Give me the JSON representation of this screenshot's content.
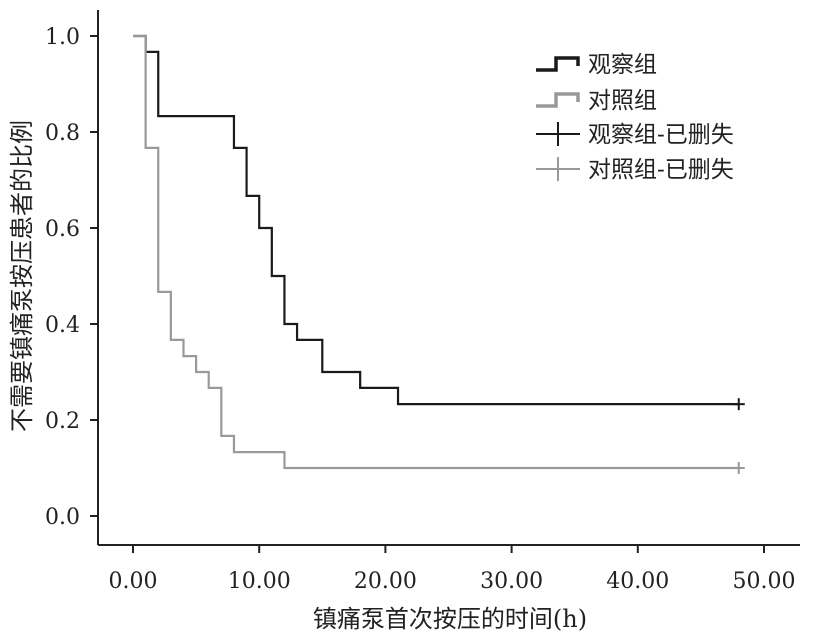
{
  "chart_data": {
    "type": "line",
    "subtype": "kaplan-meier step",
    "title": "",
    "xlabel": "镇痛泵首次按压的时间(h)",
    "ylabel": "不需要镇痛泵按压患者的比例",
    "xlim": [
      0,
      50
    ],
    "ylim": [
      0,
      1.0
    ],
    "x_ticks": [
      "0.00",
      "10.00",
      "20.00",
      "30.00",
      "40.00",
      "50.00"
    ],
    "y_ticks": [
      "0.0",
      "0.2",
      "0.4",
      "0.6",
      "0.8",
      "1.0"
    ],
    "grid": false,
    "legend_position": "top-right",
    "legend": [
      "观察组",
      "对照组",
      "观察组-已删失",
      "对照组-已删失"
    ],
    "series": [
      {
        "name": "观察组",
        "color": "#1a1a1a",
        "steps": [
          [
            0,
            1.0
          ],
          [
            1.0,
            0.967
          ],
          [
            2.0,
            0.833
          ],
          [
            8.0,
            0.767
          ],
          [
            9.0,
            0.667
          ],
          [
            10.0,
            0.6
          ],
          [
            11.0,
            0.5
          ],
          [
            12.0,
            0.4
          ],
          [
            13.0,
            0.367
          ],
          [
            15.0,
            0.3
          ],
          [
            18.0,
            0.267
          ],
          [
            21.0,
            0.233
          ],
          [
            48.0,
            0.233
          ]
        ],
        "censored": [
          [
            48.0,
            0.233
          ]
        ]
      },
      {
        "name": "对照组",
        "color": "#999999",
        "steps": [
          [
            0,
            1.0
          ],
          [
            1.0,
            0.767
          ],
          [
            2.0,
            0.467
          ],
          [
            3.0,
            0.367
          ],
          [
            4.0,
            0.333
          ],
          [
            5.0,
            0.3
          ],
          [
            6.0,
            0.267
          ],
          [
            7.0,
            0.167
          ],
          [
            8.0,
            0.133
          ],
          [
            12.0,
            0.1
          ],
          [
            48.0,
            0.1
          ]
        ],
        "censored": [
          [
            48.0,
            0.1
          ]
        ]
      }
    ]
  }
}
